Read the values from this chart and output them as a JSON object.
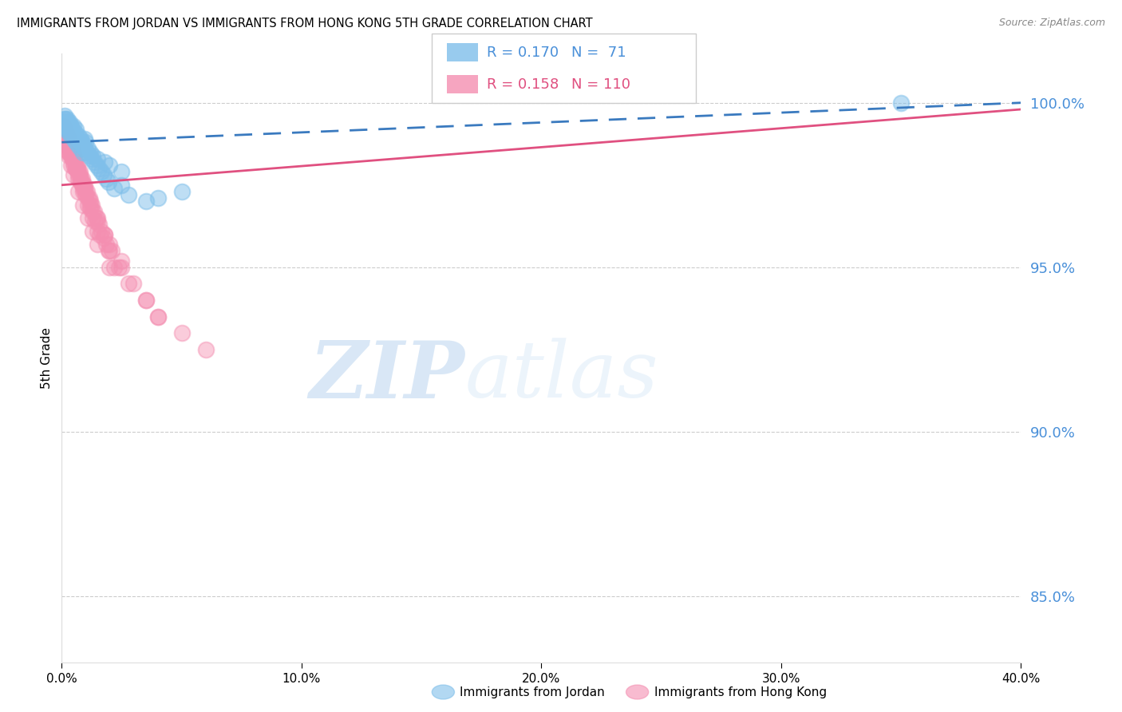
{
  "title": "IMMIGRANTS FROM JORDAN VS IMMIGRANTS FROM HONG KONG 5TH GRADE CORRELATION CHART",
  "source": "Source: ZipAtlas.com",
  "ylabel_left": "5th Grade",
  "ylabel_right_ticks": [
    100.0,
    95.0,
    90.0,
    85.0
  ],
  "xlim": [
    0.0,
    40.0
  ],
  "ylim": [
    83.0,
    101.5
  ],
  "legend_jordan": "Immigrants from Jordan",
  "legend_hk": "Immigrants from Hong Kong",
  "R_jordan": 0.17,
  "N_jordan": 71,
  "R_hk": 0.158,
  "N_hk": 110,
  "jordan_color": "#7fbfea",
  "hk_color": "#f48fb1",
  "jordan_line_color": "#3a7abf",
  "hk_line_color": "#e05080",
  "watermark_zip_color": "#c0d8f0",
  "watermark_atlas_color": "#daeaf8",
  "background_color": "#ffffff",
  "jordan_x": [
    0.05,
    0.08,
    0.1,
    0.12,
    0.15,
    0.18,
    0.2,
    0.22,
    0.25,
    0.28,
    0.3,
    0.32,
    0.35,
    0.38,
    0.4,
    0.42,
    0.45,
    0.48,
    0.5,
    0.55,
    0.6,
    0.65,
    0.7,
    0.75,
    0.8,
    0.85,
    0.9,
    0.95,
    1.0,
    1.1,
    1.2,
    1.3,
    1.5,
    1.8,
    2.0,
    2.5,
    0.1,
    0.2,
    0.3,
    0.4,
    0.5,
    0.6,
    0.7,
    0.8,
    0.9,
    0.15,
    0.25,
    0.35,
    0.45,
    0.55,
    0.65,
    0.75,
    0.85,
    0.95,
    1.05,
    1.15,
    1.25,
    1.35,
    1.45,
    1.55,
    1.65,
    1.75,
    1.85,
    1.95,
    2.2,
    2.8,
    3.5,
    4.0,
    5.0,
    2.5,
    35.0
  ],
  "jordan_y": [
    99.4,
    99.5,
    99.3,
    99.6,
    99.5,
    99.4,
    99.3,
    99.5,
    99.4,
    99.3,
    99.2,
    99.4,
    99.3,
    99.2,
    99.3,
    99.1,
    99.2,
    99.3,
    99.0,
    99.1,
    99.2,
    98.9,
    99.0,
    98.8,
    98.9,
    98.8,
    98.7,
    98.9,
    98.8,
    98.6,
    98.5,
    98.4,
    98.3,
    98.2,
    98.1,
    97.9,
    99.3,
    99.2,
    99.1,
    99.0,
    98.9,
    98.8,
    98.7,
    98.6,
    98.5,
    99.4,
    99.3,
    99.2,
    99.1,
    99.0,
    98.9,
    98.8,
    98.7,
    98.6,
    98.5,
    98.4,
    98.3,
    98.2,
    98.1,
    98.0,
    97.9,
    97.8,
    97.7,
    97.6,
    97.4,
    97.2,
    97.0,
    97.1,
    97.3,
    97.5,
    100.0
  ],
  "hk_x": [
    0.05,
    0.08,
    0.1,
    0.12,
    0.15,
    0.18,
    0.2,
    0.22,
    0.25,
    0.28,
    0.3,
    0.32,
    0.35,
    0.38,
    0.4,
    0.42,
    0.45,
    0.48,
    0.5,
    0.55,
    0.6,
    0.65,
    0.7,
    0.75,
    0.8,
    0.85,
    0.9,
    0.95,
    1.0,
    1.1,
    1.2,
    1.3,
    1.5,
    1.8,
    2.0,
    2.5,
    0.1,
    0.2,
    0.3,
    0.4,
    0.5,
    0.6,
    0.7,
    0.8,
    0.9,
    0.15,
    0.25,
    0.35,
    0.45,
    0.55,
    0.65,
    0.75,
    0.85,
    0.95,
    1.05,
    1.15,
    1.25,
    1.35,
    1.45,
    1.55,
    1.65,
    1.75,
    1.85,
    1.95,
    2.2,
    2.8,
    3.5,
    4.0,
    0.05,
    0.1,
    0.2,
    0.3,
    0.4,
    0.5,
    0.7,
    0.9,
    1.1,
    1.3,
    1.5,
    2.0,
    0.3,
    0.6,
    0.9,
    1.2,
    1.5,
    1.8,
    2.1,
    2.4,
    0.2,
    0.4,
    0.6,
    0.8,
    1.0,
    1.2,
    1.4,
    1.6,
    0.3,
    0.5,
    0.7,
    0.9,
    1.1,
    1.3,
    1.5,
    2.0,
    2.5,
    3.0,
    3.5,
    4.0,
    5.0,
    6.0
  ],
  "hk_y": [
    99.2,
    99.3,
    99.1,
    99.2,
    99.0,
    99.1,
    98.9,
    99.0,
    98.8,
    98.9,
    98.7,
    98.8,
    98.6,
    98.7,
    98.5,
    98.6,
    98.4,
    98.5,
    98.3,
    98.2,
    98.1,
    98.0,
    97.9,
    97.8,
    97.7,
    97.6,
    97.5,
    97.4,
    97.3,
    97.1,
    96.9,
    96.7,
    96.4,
    96.0,
    95.7,
    95.2,
    99.0,
    98.8,
    98.6,
    98.4,
    98.2,
    98.0,
    97.8,
    97.6,
    97.4,
    99.1,
    98.9,
    98.7,
    98.5,
    98.3,
    98.1,
    97.9,
    97.7,
    97.5,
    97.3,
    97.1,
    96.9,
    96.7,
    96.5,
    96.3,
    96.1,
    95.9,
    95.7,
    95.5,
    95.0,
    94.5,
    94.0,
    93.5,
    99.3,
    99.0,
    98.7,
    98.4,
    98.1,
    97.8,
    97.3,
    96.9,
    96.5,
    96.1,
    95.7,
    95.0,
    98.5,
    98.0,
    97.5,
    97.0,
    96.5,
    96.0,
    95.5,
    95.0,
    98.8,
    98.4,
    98.0,
    97.6,
    97.2,
    96.8,
    96.4,
    96.0,
    98.5,
    98.1,
    97.7,
    97.3,
    96.9,
    96.5,
    96.1,
    95.5,
    95.0,
    94.5,
    94.0,
    93.5,
    93.0,
    92.5
  ],
  "jordan_trend_x": [
    0.0,
    40.0
  ],
  "jordan_trend_y": [
    98.8,
    100.0
  ],
  "hk_trend_x": [
    0.0,
    40.0
  ],
  "hk_trend_y": [
    97.5,
    99.8
  ]
}
